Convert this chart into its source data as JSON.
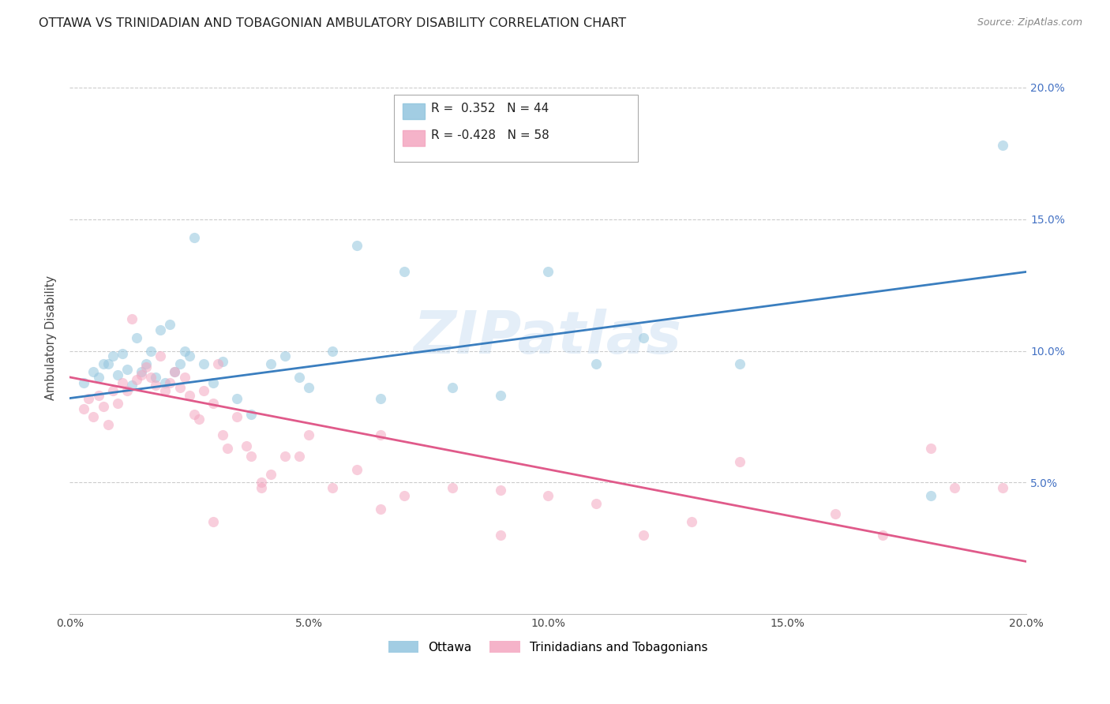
{
  "title": "OTTAWA VS TRINIDADIAN AND TOBAGONIAN AMBULATORY DISABILITY CORRELATION CHART",
  "source": "Source: ZipAtlas.com",
  "ylabel": "Ambulatory Disability",
  "xlim": [
    0.0,
    0.2
  ],
  "ylim": [
    0.0,
    0.21
  ],
  "xticks": [
    0.0,
    0.05,
    0.1,
    0.15,
    0.2
  ],
  "yticks": [
    0.05,
    0.1,
    0.15,
    0.2
  ],
  "xtick_labels": [
    "0.0%",
    "5.0%",
    "10.0%",
    "15.0%",
    "20.0%"
  ],
  "ytick_labels": [
    "5.0%",
    "10.0%",
    "15.0%",
    "20.0%"
  ],
  "legend_entries": [
    {
      "label": "Ottawa",
      "color": "#92c5de",
      "R": " 0.352",
      "N": "44"
    },
    {
      "label": "Trinidadians and Tobagonians",
      "color": "#f4a6c0",
      "R": "-0.428",
      "N": "58"
    }
  ],
  "blue_scatter_x": [
    0.003,
    0.005,
    0.006,
    0.007,
    0.008,
    0.009,
    0.01,
    0.011,
    0.012,
    0.013,
    0.014,
    0.015,
    0.016,
    0.017,
    0.018,
    0.019,
    0.02,
    0.021,
    0.022,
    0.023,
    0.024,
    0.025,
    0.026,
    0.028,
    0.03,
    0.032,
    0.035,
    0.038,
    0.042,
    0.045,
    0.048,
    0.05,
    0.055,
    0.06,
    0.065,
    0.07,
    0.08,
    0.09,
    0.1,
    0.11,
    0.12,
    0.14,
    0.18,
    0.195
  ],
  "blue_scatter_y": [
    0.088,
    0.092,
    0.09,
    0.095,
    0.095,
    0.098,
    0.091,
    0.099,
    0.093,
    0.087,
    0.105,
    0.092,
    0.095,
    0.1,
    0.09,
    0.108,
    0.088,
    0.11,
    0.092,
    0.095,
    0.1,
    0.098,
    0.143,
    0.095,
    0.088,
    0.096,
    0.082,
    0.076,
    0.095,
    0.098,
    0.09,
    0.086,
    0.1,
    0.14,
    0.082,
    0.13,
    0.086,
    0.083,
    0.13,
    0.095,
    0.105,
    0.095,
    0.045,
    0.178
  ],
  "pink_scatter_x": [
    0.003,
    0.004,
    0.005,
    0.006,
    0.007,
    0.008,
    0.009,
    0.01,
    0.011,
    0.012,
    0.013,
    0.014,
    0.015,
    0.016,
    0.017,
    0.018,
    0.019,
    0.02,
    0.021,
    0.022,
    0.023,
    0.024,
    0.025,
    0.026,
    0.027,
    0.028,
    0.03,
    0.031,
    0.032,
    0.033,
    0.035,
    0.037,
    0.038,
    0.04,
    0.042,
    0.045,
    0.048,
    0.05,
    0.055,
    0.06,
    0.065,
    0.07,
    0.08,
    0.09,
    0.1,
    0.11,
    0.12,
    0.13,
    0.14,
    0.16,
    0.17,
    0.18,
    0.185,
    0.195,
    0.03,
    0.04,
    0.065,
    0.09
  ],
  "pink_scatter_y": [
    0.078,
    0.082,
    0.075,
    0.083,
    0.079,
    0.072,
    0.085,
    0.08,
    0.088,
    0.085,
    0.112,
    0.089,
    0.091,
    0.094,
    0.09,
    0.087,
    0.098,
    0.085,
    0.088,
    0.092,
    0.086,
    0.09,
    0.083,
    0.076,
    0.074,
    0.085,
    0.08,
    0.095,
    0.068,
    0.063,
    0.075,
    0.064,
    0.06,
    0.048,
    0.053,
    0.06,
    0.06,
    0.068,
    0.048,
    0.055,
    0.068,
    0.045,
    0.048,
    0.047,
    0.045,
    0.042,
    0.03,
    0.035,
    0.058,
    0.038,
    0.03,
    0.063,
    0.048,
    0.048,
    0.035,
    0.05,
    0.04,
    0.03
  ],
  "blue_line_x": [
    0.0,
    0.2
  ],
  "blue_line_y": [
    0.082,
    0.13
  ],
  "pink_line_x": [
    0.0,
    0.2
  ],
  "pink_line_y": [
    0.09,
    0.02
  ],
  "watermark": "ZIPatlas",
  "title_color": "#222222",
  "title_fontsize": 11.5,
  "axis_tick_color": "#4472c4",
  "grid_color": "#cccccc",
  "blue_line_color": "#3a7ebf",
  "pink_line_color": "#e05a8a",
  "scatter_alpha": 0.55,
  "scatter_size": 90
}
